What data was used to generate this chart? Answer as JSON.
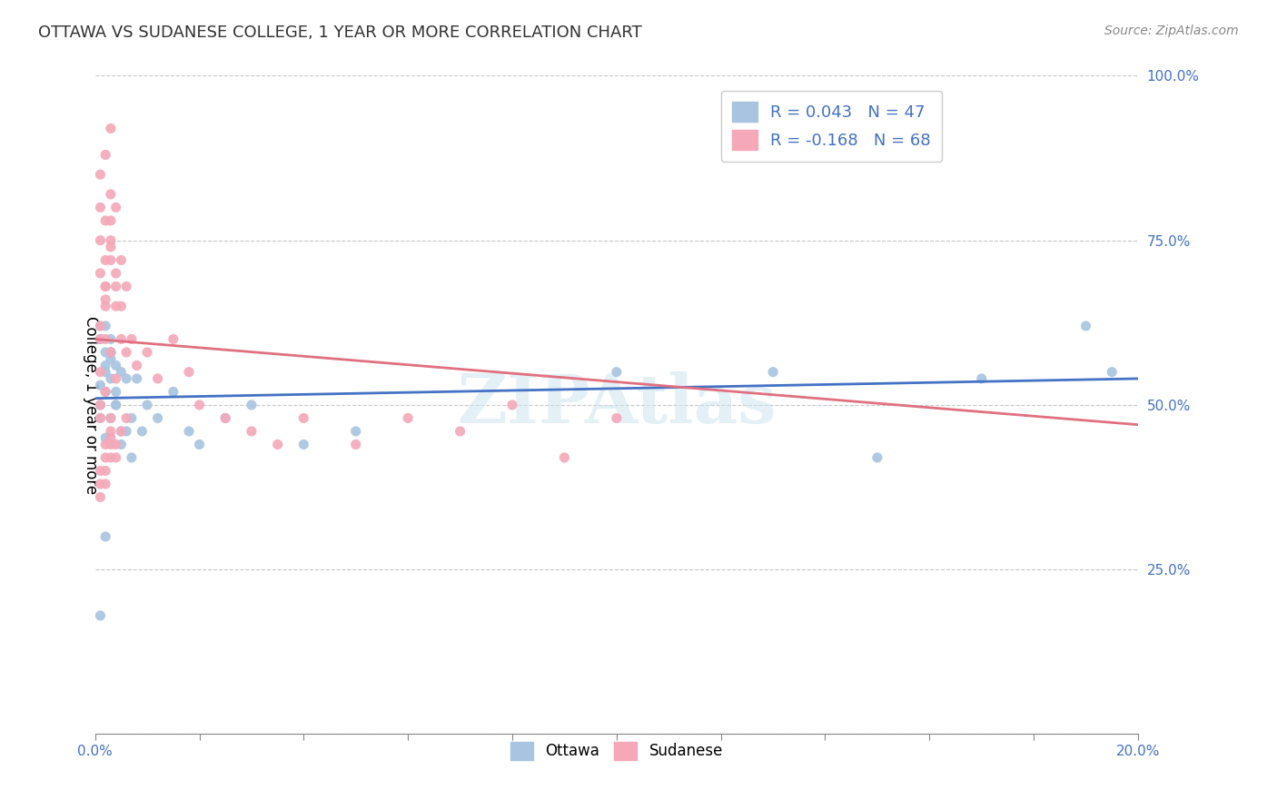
{
  "title": "OTTAWA VS SUDANESE COLLEGE, 1 YEAR OR MORE CORRELATION CHART",
  "source": "Source: ZipAtlas.com",
  "ylabel": "College, 1 year or more",
  "xlim": [
    0.0,
    0.2
  ],
  "ylim": [
    0.0,
    1.0
  ],
  "xticks": [
    0.0,
    0.02,
    0.04,
    0.06,
    0.08,
    0.1,
    0.12,
    0.14,
    0.16,
    0.18,
    0.2
  ],
  "xticklabels": [
    "0.0%",
    "",
    "",
    "",
    "",
    "",
    "",
    "",
    "",
    "",
    "20.0%"
  ],
  "yticks": [
    0.0,
    0.25,
    0.5,
    0.75,
    1.0
  ],
  "yticklabels": [
    "",
    "25.0%",
    "50.0%",
    "75.0%",
    "100.0%"
  ],
  "ottawa_color": "#a8c4e0",
  "sudanese_color": "#f4a8b8",
  "ottawa_line_color": "#4472c4",
  "sudanese_line_color": "#e07080",
  "tick_color": "#4472c4",
  "R_ottawa": 0.043,
  "N_ottawa": 47,
  "R_sudanese": -0.168,
  "N_sudanese": 68,
  "watermark": "ZIPAtlas",
  "ottawa_x": [
    0.001,
    0.002,
    0.001,
    0.002,
    0.003,
    0.001,
    0.002,
    0.001,
    0.003,
    0.002,
    0.001,
    0.003,
    0.002,
    0.004,
    0.003,
    0.002,
    0.004,
    0.003,
    0.005,
    0.004,
    0.003,
    0.005,
    0.004,
    0.006,
    0.005,
    0.007,
    0.006,
    0.008,
    0.007,
    0.01,
    0.009,
    0.012,
    0.015,
    0.018,
    0.02,
    0.025,
    0.03,
    0.04,
    0.05,
    0.1,
    0.13,
    0.15,
    0.17,
    0.19,
    0.195,
    0.001,
    0.002
  ],
  "ottawa_y": [
    0.6,
    0.58,
    0.62,
    0.55,
    0.57,
    0.53,
    0.56,
    0.5,
    0.54,
    0.52,
    0.48,
    0.58,
    0.62,
    0.56,
    0.6,
    0.45,
    0.52,
    0.48,
    0.55,
    0.5,
    0.58,
    0.46,
    0.5,
    0.54,
    0.44,
    0.48,
    0.46,
    0.54,
    0.42,
    0.5,
    0.46,
    0.48,
    0.52,
    0.46,
    0.44,
    0.48,
    0.5,
    0.44,
    0.46,
    0.55,
    0.55,
    0.42,
    0.54,
    0.62,
    0.55,
    0.18,
    0.3
  ],
  "sudanese_x": [
    0.001,
    0.001,
    0.002,
    0.001,
    0.002,
    0.001,
    0.003,
    0.002,
    0.001,
    0.002,
    0.001,
    0.003,
    0.002,
    0.003,
    0.002,
    0.004,
    0.003,
    0.002,
    0.004,
    0.003,
    0.005,
    0.004,
    0.003,
    0.005,
    0.004,
    0.006,
    0.005,
    0.007,
    0.006,
    0.008,
    0.001,
    0.002,
    0.001,
    0.003,
    0.002,
    0.001,
    0.004,
    0.003,
    0.002,
    0.003,
    0.01,
    0.012,
    0.015,
    0.018,
    0.02,
    0.025,
    0.03,
    0.035,
    0.04,
    0.05,
    0.06,
    0.07,
    0.08,
    0.09,
    0.1,
    0.001,
    0.002,
    0.001,
    0.003,
    0.002,
    0.001,
    0.003,
    0.004,
    0.002,
    0.005,
    0.003,
    0.006,
    0.004
  ],
  "sudanese_y": [
    0.62,
    0.7,
    0.65,
    0.75,
    0.68,
    0.8,
    0.72,
    0.66,
    0.85,
    0.78,
    0.6,
    0.74,
    0.68,
    0.82,
    0.72,
    0.65,
    0.78,
    0.88,
    0.7,
    0.92,
    0.6,
    0.68,
    0.75,
    0.72,
    0.8,
    0.58,
    0.65,
    0.6,
    0.68,
    0.56,
    0.55,
    0.6,
    0.5,
    0.58,
    0.52,
    0.48,
    0.54,
    0.46,
    0.44,
    0.48,
    0.58,
    0.54,
    0.6,
    0.55,
    0.5,
    0.48,
    0.46,
    0.44,
    0.48,
    0.44,
    0.48,
    0.46,
    0.5,
    0.42,
    0.48,
    0.38,
    0.42,
    0.4,
    0.45,
    0.38,
    0.36,
    0.42,
    0.44,
    0.4,
    0.46,
    0.44,
    0.48,
    0.42
  ]
}
